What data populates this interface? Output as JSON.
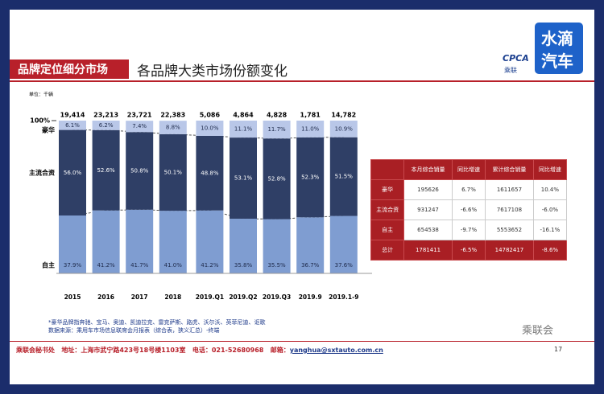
{
  "header": {
    "title": "品牌定位细分市场",
    "subtitle": "各品牌大类市场份额变化",
    "logo": "CPCA",
    "logo_sub": "乘联",
    "badge": [
      "水滴",
      "汽车"
    ]
  },
  "chart_data": {
    "type": "stacked_bar",
    "unit": "单位：千辆",
    "categories": [
      "2015",
      "2016",
      "2017",
      "2018",
      "2019.Q1",
      "2019.Q2",
      "2019.Q3",
      "2019.9",
      "2019.1-9"
    ],
    "series": [
      {
        "name": "自主",
        "color": "#7f9dd1",
        "values": [
          37.9,
          41.2,
          41.7,
          41.0,
          41.2,
          35.8,
          35.5,
          36.7,
          37.6
        ],
        "value_labels": [
          "37.9%",
          "41.2%",
          "41.7%",
          "41.0%",
          "41.2%",
          "35.8%",
          "35.5%",
          "36.7%",
          "37.6%"
        ]
      },
      {
        "name": "主流合资",
        "color": "#2f3f66",
        "values": [
          56.0,
          52.6,
          50.8,
          50.1,
          48.8,
          53.1,
          52.8,
          52.3,
          51.5
        ],
        "value_labels": [
          "56.0%",
          "52.6%",
          "50.8%",
          "50.1%",
          "48.8%",
          "53.1%",
          "52.8%",
          "52.3%",
          "51.5%"
        ]
      },
      {
        "name": "豪华",
        "color": "#b9c7e8",
        "values": [
          6.1,
          6.2,
          7.4,
          8.8,
          10.0,
          11.1,
          11.7,
          11.0,
          10.9
        ],
        "value_labels": [
          "6.1%",
          "6.2%",
          "7.4%",
          "8.8%",
          "10.0%",
          "11.1%",
          "11.7%",
          "11.0%",
          "10.9%"
        ]
      }
    ],
    "totals": {
      "values": [
        19414,
        23213,
        23721,
        22383,
        5086,
        4864,
        4828,
        1781,
        14782
      ],
      "value_labels": [
        "19,414",
        "23,213",
        "23,721",
        "22,383",
        "5,086",
        "4,864",
        "4,828",
        "1,781",
        "14,782"
      ]
    },
    "ylim": [
      0,
      100
    ],
    "yticks": [
      {
        "value": 100,
        "label": "100%"
      }
    ]
  },
  "table": {
    "header": [
      "本月综合销量",
      "同比增速",
      "累计综合销量",
      "同比增速"
    ],
    "rows": [
      [
        "豪华",
        "195626",
        "6.7%",
        "1611657",
        "10.4%"
      ],
      [
        "主流合资",
        "931247",
        "-6.6%",
        "7617108",
        "-6.0%"
      ],
      [
        "自主",
        "654538",
        "-9.7%",
        "5553652",
        "-16.1%"
      ],
      [
        "总计",
        "1781411",
        "-6.5%",
        "14782417",
        "-8.6%"
      ]
    ]
  },
  "notes": [
    "*豪华品牌指奔驰、宝马、奥迪、凯迪拉克、雷克萨斯、路虎、沃尔沃、英菲尼迪、讴歌",
    "数据来源：乘用车市场信息联席会月报表（综合表，狭义汇总）-终端"
  ],
  "footer": {
    "org": "乘联会秘书处",
    "address": "地址：上海市武宁路423号18号楼1103室",
    "phone": "电话：021-52680968",
    "email_label": "邮箱：",
    "email": "yanghua@sxtauto.com.cn",
    "page": "17",
    "watermark": "乘联会"
  }
}
